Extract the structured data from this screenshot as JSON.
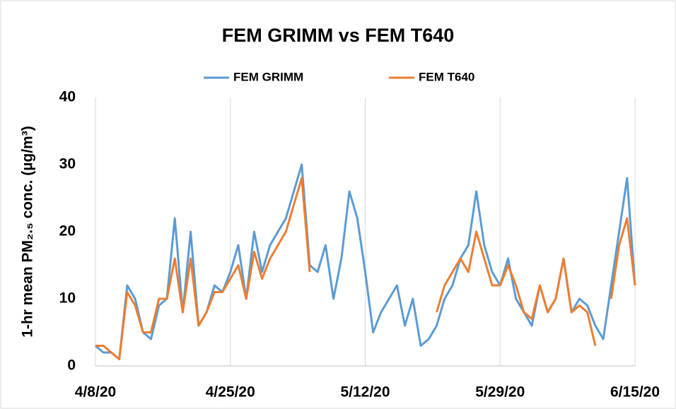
{
  "chart_data": {
    "type": "line",
    "title": "FEM GRIMM vs FEM T640",
    "y_label": "1-hr mean PM₂.₅ conc. (µg/m³)",
    "x": [
      "4/8/20",
      "4/9/20",
      "4/10/20",
      "4/11/20",
      "4/12/20",
      "4/13/20",
      "4/14/20",
      "4/15/20",
      "4/16/20",
      "4/17/20",
      "4/18/20",
      "4/19/20",
      "4/20/20",
      "4/21/20",
      "4/22/20",
      "4/23/20",
      "4/24/20",
      "4/25/20",
      "4/26/20",
      "4/27/20",
      "4/28/20",
      "4/29/20",
      "4/30/20",
      "5/1/20",
      "5/2/20",
      "5/3/20",
      "5/4/20",
      "5/5/20",
      "5/6/20",
      "5/7/20",
      "5/8/20",
      "5/9/20",
      "5/10/20",
      "5/11/20",
      "5/12/20",
      "5/13/20",
      "5/14/20",
      "5/15/20",
      "5/16/20",
      "5/17/20",
      "5/18/20",
      "5/19/20",
      "5/20/20",
      "5/21/20",
      "5/22/20",
      "5/23/20",
      "5/24/20",
      "5/25/20",
      "5/26/20",
      "5/27/20",
      "5/28/20",
      "5/29/20",
      "5/30/20",
      "5/31/20",
      "6/1/20",
      "6/2/20",
      "6/3/20",
      "6/4/20",
      "6/5/20",
      "6/6/20",
      "6/7/20",
      "6/8/20",
      "6/9/20",
      "6/10/20",
      "6/11/20",
      "6/12/20",
      "6/13/20",
      "6/14/20",
      "6/15/20"
    ],
    "series": [
      {
        "name": "FEM GRIMM",
        "color": "#5b9bd5",
        "values": [
          3,
          2,
          2,
          1,
          12,
          10,
          5,
          4,
          9,
          10,
          22,
          8,
          20,
          6,
          8,
          12,
          11,
          14,
          18,
          10,
          20,
          14,
          18,
          20,
          22,
          26,
          30,
          15,
          14,
          18,
          10,
          16,
          26,
          22,
          14,
          5,
          8,
          10,
          12,
          6,
          10,
          3,
          4,
          6,
          10,
          12,
          16,
          18,
          26,
          18,
          14,
          12,
          16,
          10,
          8,
          6,
          12,
          8,
          10,
          16,
          8,
          10,
          9,
          6,
          4,
          12,
          20,
          28,
          12
        ]
      },
      {
        "name": "FEM T640",
        "color": "#ed7d31",
        "values": [
          3,
          3,
          2,
          1,
          11,
          9,
          5,
          5,
          10,
          10,
          16,
          8,
          16,
          6,
          8,
          11,
          11,
          13,
          15,
          10,
          17,
          13,
          16,
          18,
          20,
          24,
          28,
          14,
          null,
          null,
          null,
          null,
          null,
          null,
          null,
          null,
          null,
          null,
          null,
          null,
          null,
          null,
          null,
          8,
          12,
          14,
          16,
          14,
          20,
          16,
          12,
          12,
          15,
          12,
          8,
          7,
          12,
          8,
          10,
          16,
          8,
          9,
          8,
          3,
          null,
          10,
          18,
          22,
          12
        ]
      }
    ],
    "xlim": [
      "4/8/20",
      "6/15/20"
    ],
    "xticks": [
      "4/8/20",
      "4/25/20",
      "5/12/20",
      "5/29/20",
      "6/15/20"
    ],
    "ylim": [
      0,
      40
    ],
    "yticks": [
      0,
      10,
      20,
      30,
      40
    ],
    "grid": "x",
    "legend": "top"
  }
}
